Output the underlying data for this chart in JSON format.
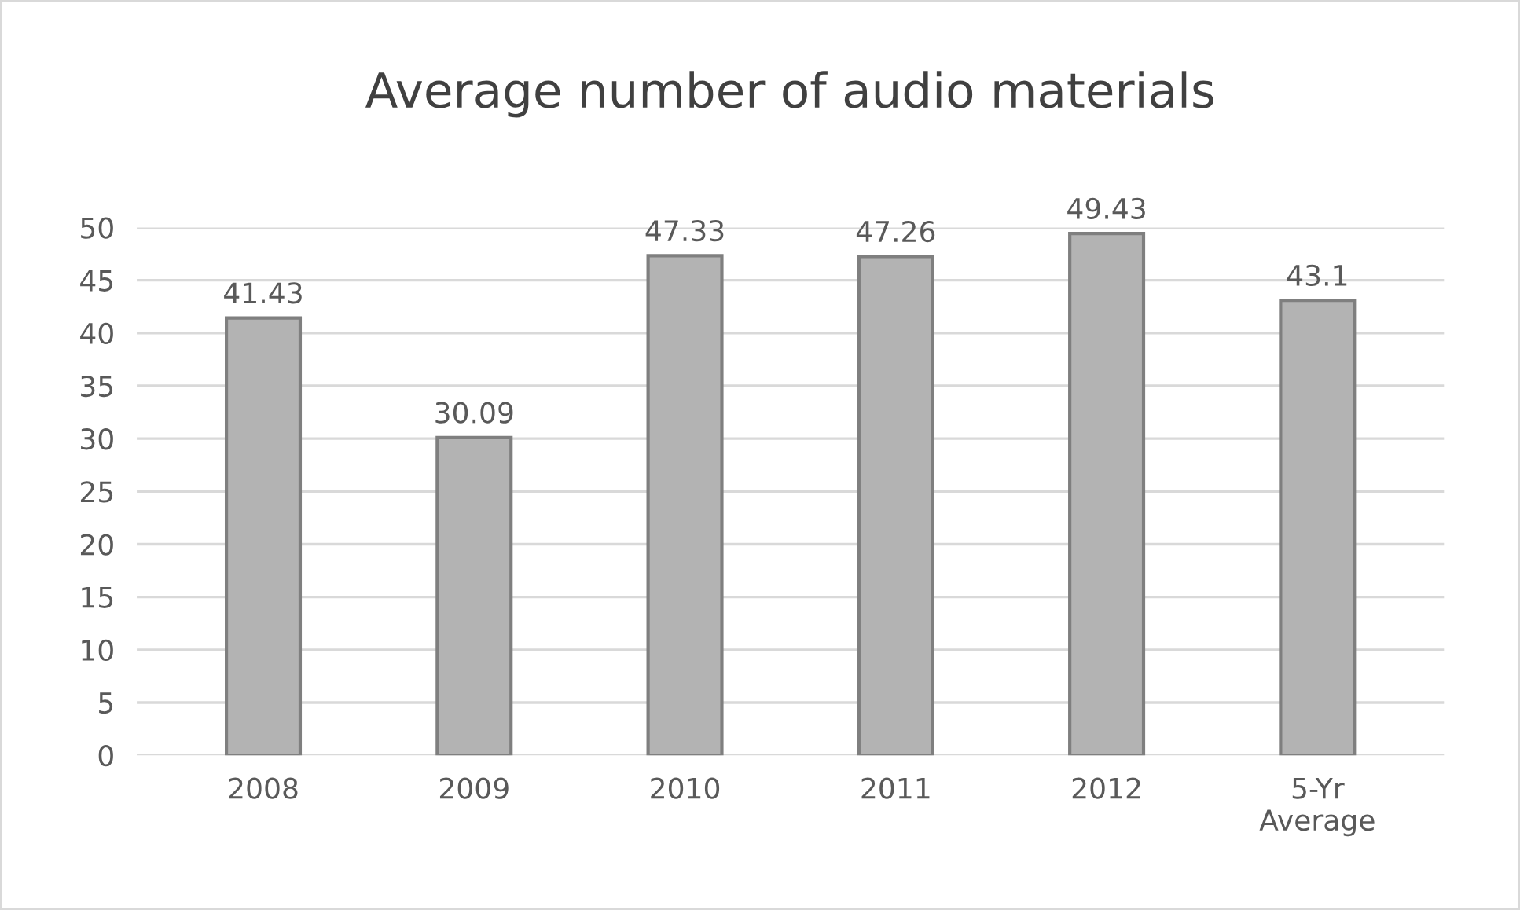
{
  "chart_data": {
    "type": "bar",
    "title": "Average number of audio materials",
    "categories": [
      "2008",
      "2009",
      "2010",
      "2011",
      "2012",
      "5-Yr\nAverage"
    ],
    "values": [
      41.43,
      30.09,
      47.33,
      47.26,
      49.43,
      43.1
    ],
    "color": "#b3b3b3",
    "ylim": [
      0,
      50
    ],
    "yticks": [
      0,
      5,
      10,
      15,
      20,
      25,
      30,
      35,
      40,
      45,
      50
    ],
    "grid": "y",
    "data_labels": true
  }
}
